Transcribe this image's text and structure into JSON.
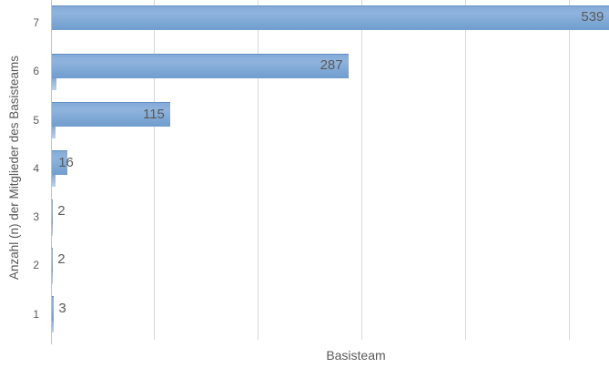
{
  "chart_data": {
    "type": "bar",
    "orientation": "horizontal",
    "title": "",
    "xlabel": "Basisteam",
    "ylabel": "Anzahl (n) der Mitglieder des Basisteams",
    "categories": [
      "7",
      "6",
      "5",
      "4",
      "3",
      "2",
      "1"
    ],
    "series": [
      {
        "name": "main",
        "values": [
          539,
          287,
          115,
          16,
          2,
          2,
          3
        ],
        "labels": [
          "539",
          "287",
          "115",
          "16",
          "2",
          "2",
          "3"
        ]
      },
      {
        "name": "secondary-unlabeled",
        "estimated": true,
        "values": [
          0,
          5,
          4,
          4,
          2,
          2,
          3
        ]
      }
    ],
    "xlim": [
      0,
      600
    ],
    "gridline_interval": 100,
    "grid": true,
    "legend": false,
    "colors": {
      "bar_fill": "#7CA5D5",
      "bar_fill_top": "#84ABD8",
      "bar_fill_bottom": "#6F9DCE",
      "bar_secondary_top": "#85AAD7",
      "bar_secondary_bottom": "#BDD2EC",
      "text": "#595959",
      "gridline": "#D9D9D9",
      "axis_line": "#C0C0C0",
      "background": "#FFFFFF"
    }
  }
}
